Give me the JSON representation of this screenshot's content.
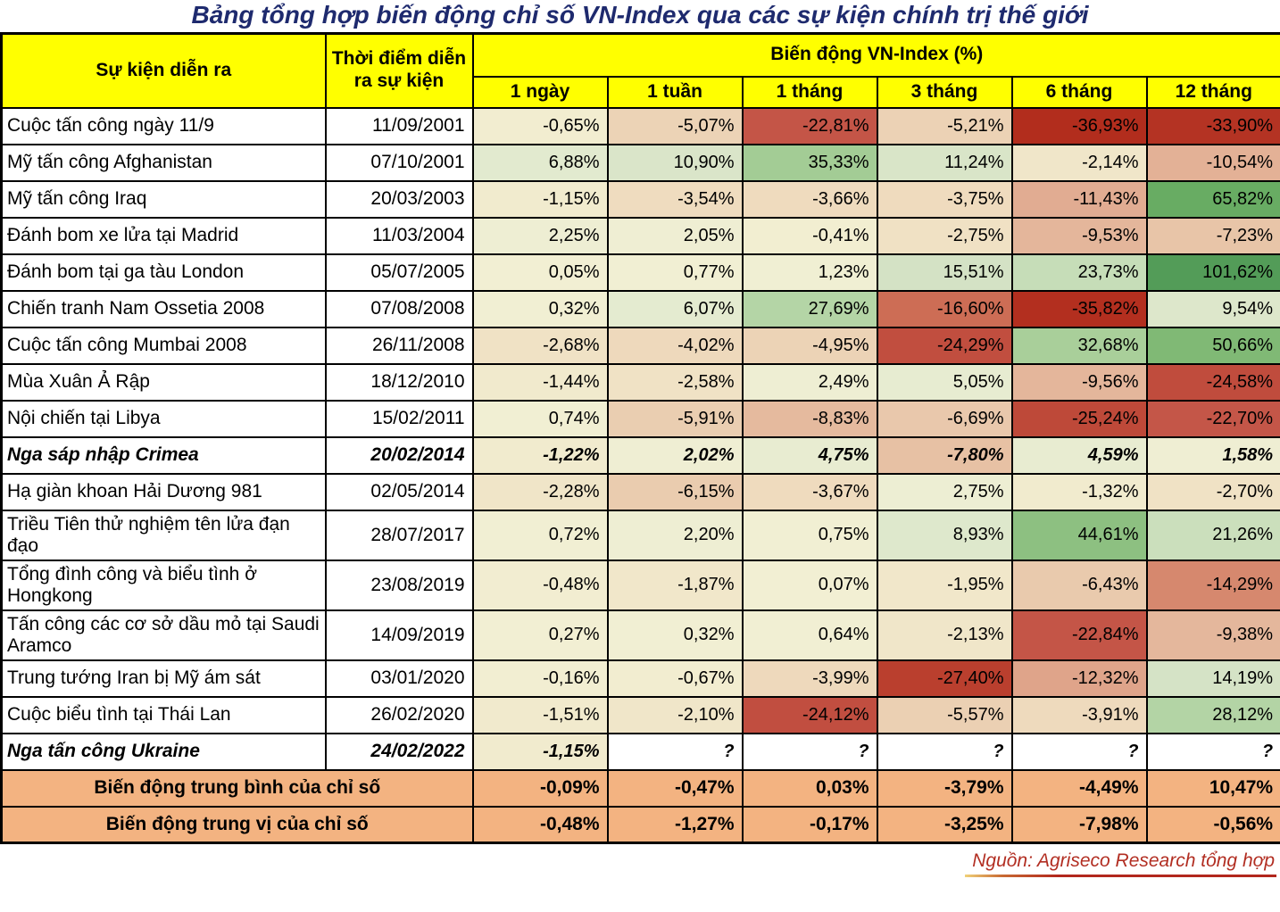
{
  "title": "Bảng tổng hợp biến động chỉ số VN-Index qua các sự kiện chính trị thế giới",
  "source_note": "Nguồn: Agriseco Research tổng hợp",
  "table": {
    "col_event": "Sự kiện diễn ra",
    "col_date": "Thời điểm diễn ra sự kiện",
    "group_header": "Biến động VN-Index (%)",
    "periods": [
      "1 ngày",
      "1 tuần",
      "1 tháng",
      "3 tháng",
      "6 tháng",
      "12 tháng"
    ],
    "rows": [
      {
        "event": "Cuộc tấn công ngày 11/9",
        "date": "11/09/2001",
        "values": [
          "-0,65%",
          "-5,07%",
          "-22,81%",
          "-5,21%",
          "-36,93%",
          "-33,90%"
        ],
        "nums": [
          -0.65,
          -5.07,
          -22.81,
          -5.21,
          -36.93,
          -33.9
        ],
        "emphasis": false
      },
      {
        "event": "Mỹ tấn công Afghanistan",
        "date": "07/10/2001",
        "values": [
          "6,88%",
          "10,90%",
          "35,33%",
          "11,24%",
          "-2,14%",
          "-10,54%"
        ],
        "nums": [
          6.88,
          10.9,
          35.33,
          11.24,
          -2.14,
          -10.54
        ],
        "emphasis": false
      },
      {
        "event": "Mỹ tấn công Iraq",
        "date": "20/03/2003",
        "values": [
          "-1,15%",
          "-3,54%",
          "-3,66%",
          "-3,75%",
          "-11,43%",
          "65,82%"
        ],
        "nums": [
          -1.15,
          -3.54,
          -3.66,
          -3.75,
          -11.43,
          65.82
        ],
        "emphasis": false
      },
      {
        "event": "Đánh bom xe lửa tại Madrid",
        "date": "11/03/2004",
        "values": [
          "2,25%",
          "2,05%",
          "-0,41%",
          "-2,75%",
          "-9,53%",
          "-7,23%"
        ],
        "nums": [
          2.25,
          2.05,
          -0.41,
          -2.75,
          -9.53,
          -7.23
        ],
        "emphasis": false
      },
      {
        "event": "Đánh bom tại ga tàu London",
        "date": "05/07/2005",
        "values": [
          "0,05%",
          "0,77%",
          "1,23%",
          "15,51%",
          "23,73%",
          "101,62%"
        ],
        "nums": [
          0.05,
          0.77,
          1.23,
          15.51,
          23.73,
          101.62
        ],
        "emphasis": false
      },
      {
        "event": "Chiến tranh Nam Ossetia 2008",
        "date": "07/08/2008",
        "values": [
          "0,32%",
          "6,07%",
          "27,69%",
          "-16,60%",
          "-35,82%",
          "9,54%"
        ],
        "nums": [
          0.32,
          6.07,
          27.69,
          -16.6,
          -35.82,
          9.54
        ],
        "emphasis": false
      },
      {
        "event": "Cuộc tấn công Mumbai 2008",
        "date": "26/11/2008",
        "values": [
          "-2,68%",
          "-4,02%",
          "-4,95%",
          "-24,29%",
          "32,68%",
          "50,66%"
        ],
        "nums": [
          -2.68,
          -4.02,
          -4.95,
          -24.29,
          32.68,
          50.66
        ],
        "emphasis": false
      },
      {
        "event": "Mùa Xuân Ả Rập",
        "date": "18/12/2010",
        "values": [
          "-1,44%",
          "-2,58%",
          "2,49%",
          "5,05%",
          "-9,56%",
          "-24,58%"
        ],
        "nums": [
          -1.44,
          -2.58,
          2.49,
          5.05,
          -9.56,
          -24.58
        ],
        "emphasis": false
      },
      {
        "event": "Nội chiến tại Libya",
        "date": "15/02/2011",
        "values": [
          "0,74%",
          "-5,91%",
          "-8,83%",
          "-6,69%",
          "-25,24%",
          "-22,70%"
        ],
        "nums": [
          0.74,
          -5.91,
          -8.83,
          -6.69,
          -25.24,
          -22.7
        ],
        "emphasis": false
      },
      {
        "event": "Nga sáp nhập Crimea",
        "date": "20/02/2014",
        "values": [
          "-1,22%",
          "2,02%",
          "4,75%",
          "-7,80%",
          "4,59%",
          "1,58%"
        ],
        "nums": [
          -1.22,
          2.02,
          4.75,
          -7.8,
          4.59,
          1.58
        ],
        "emphasis": true
      },
      {
        "event": "Hạ giàn khoan Hải Dương 981",
        "date": "02/05/2014",
        "values": [
          "-2,28%",
          "-6,15%",
          "-3,67%",
          "2,75%",
          "-1,32%",
          "-2,70%"
        ],
        "nums": [
          -2.28,
          -6.15,
          -3.67,
          2.75,
          -1.32,
          -2.7
        ],
        "emphasis": false
      },
      {
        "event": "Triều Tiên thử nghiệm tên lửa đạn đạo",
        "date": "28/07/2017",
        "values": [
          "0,72%",
          "2,20%",
          "0,75%",
          "8,93%",
          "44,61%",
          "21,26%"
        ],
        "nums": [
          0.72,
          2.2,
          0.75,
          8.93,
          44.61,
          21.26
        ],
        "emphasis": false
      },
      {
        "event": "Tổng đình công và biểu tình ở Hongkong",
        "date": "23/08/2019",
        "values": [
          "-0,48%",
          "-1,87%",
          "0,07%",
          "-1,95%",
          "-6,43%",
          "-14,29%"
        ],
        "nums": [
          -0.48,
          -1.87,
          0.07,
          -1.95,
          -6.43,
          -14.29
        ],
        "emphasis": false
      },
      {
        "event": "Tấn công các cơ sở dầu mỏ tại Saudi Aramco",
        "date": "14/09/2019",
        "values": [
          "0,27%",
          "0,32%",
          "0,64%",
          "-2,13%",
          "-22,84%",
          "-9,38%"
        ],
        "nums": [
          0.27,
          0.32,
          0.64,
          -2.13,
          -22.84,
          -9.38
        ],
        "emphasis": false
      },
      {
        "event": "Trung tướng Iran bị Mỹ ám sát",
        "date": "03/01/2020",
        "values": [
          "-0,16%",
          "-0,67%",
          "-3,99%",
          "-27,40%",
          "-12,32%",
          "14,19%"
        ],
        "nums": [
          -0.16,
          -0.67,
          -3.99,
          -27.4,
          -12.32,
          14.19
        ],
        "emphasis": false
      },
      {
        "event": "Cuộc biểu tình tại Thái Lan",
        "date": "26/02/2020",
        "values": [
          "-1,51%",
          "-2,10%",
          "-24,12%",
          "-5,57%",
          "-3,91%",
          "28,12%"
        ],
        "nums": [
          -1.51,
          -2.1,
          -24.12,
          -5.57,
          -3.91,
          28.12
        ],
        "emphasis": false
      },
      {
        "event": "Nga tấn công Ukraine",
        "date": "24/02/2022",
        "values": [
          "-1,15%",
          "?",
          "?",
          "?",
          "?",
          "?"
        ],
        "nums": [
          -1.15,
          null,
          null,
          null,
          null,
          null
        ],
        "emphasis": true
      }
    ],
    "summary_rows": [
      {
        "label": "Biến động trung bình của chỉ số",
        "values": [
          "-0,09%",
          "-0,47%",
          "0,03%",
          "-3,79%",
          "-4,49%",
          "10,47%"
        ]
      },
      {
        "label": "Biến động trung vị của chỉ số",
        "values": [
          "-0,48%",
          "-1,27%",
          "-0,17%",
          "-3,25%",
          "-7,98%",
          "-0,56%"
        ]
      }
    ]
  },
  "colors": {
    "header_bg": "#FFFF00",
    "summary_bg": "#F3B381",
    "title_color": "#1E2A6E",
    "source_color": "#B22E22",
    "grid": "#000000",
    "unknown_cell_bg": "#FFFFFF",
    "heatmap_anchors": [
      [
        -37,
        "#B22D1D"
      ],
      [
        -27,
        "#BA402F"
      ],
      [
        -22,
        "#C6594C"
      ],
      [
        -16,
        "#CE6F56"
      ],
      [
        -12,
        "#E0A98F"
      ],
      [
        -8.5,
        "#E6BCA0"
      ],
      [
        -6,
        "#EACDB0"
      ],
      [
        -3.5,
        "#EFDCBF"
      ],
      [
        -1.5,
        "#F1EACD"
      ],
      [
        0,
        "#F2EFD3"
      ],
      [
        3,
        "#EDEED3"
      ],
      [
        6,
        "#E4EBD0"
      ],
      [
        9,
        "#DEE8CC"
      ],
      [
        12,
        "#D7E4C7"
      ],
      [
        16,
        "#D4E2C5"
      ],
      [
        24,
        "#C6DDB8"
      ],
      [
        28,
        "#B3D4A5"
      ],
      [
        36,
        "#A2CB93"
      ],
      [
        45,
        "#8CC080"
      ],
      [
        51,
        "#7FB974"
      ],
      [
        66,
        "#68AC63"
      ],
      [
        102,
        "#539C58"
      ]
    ]
  }
}
